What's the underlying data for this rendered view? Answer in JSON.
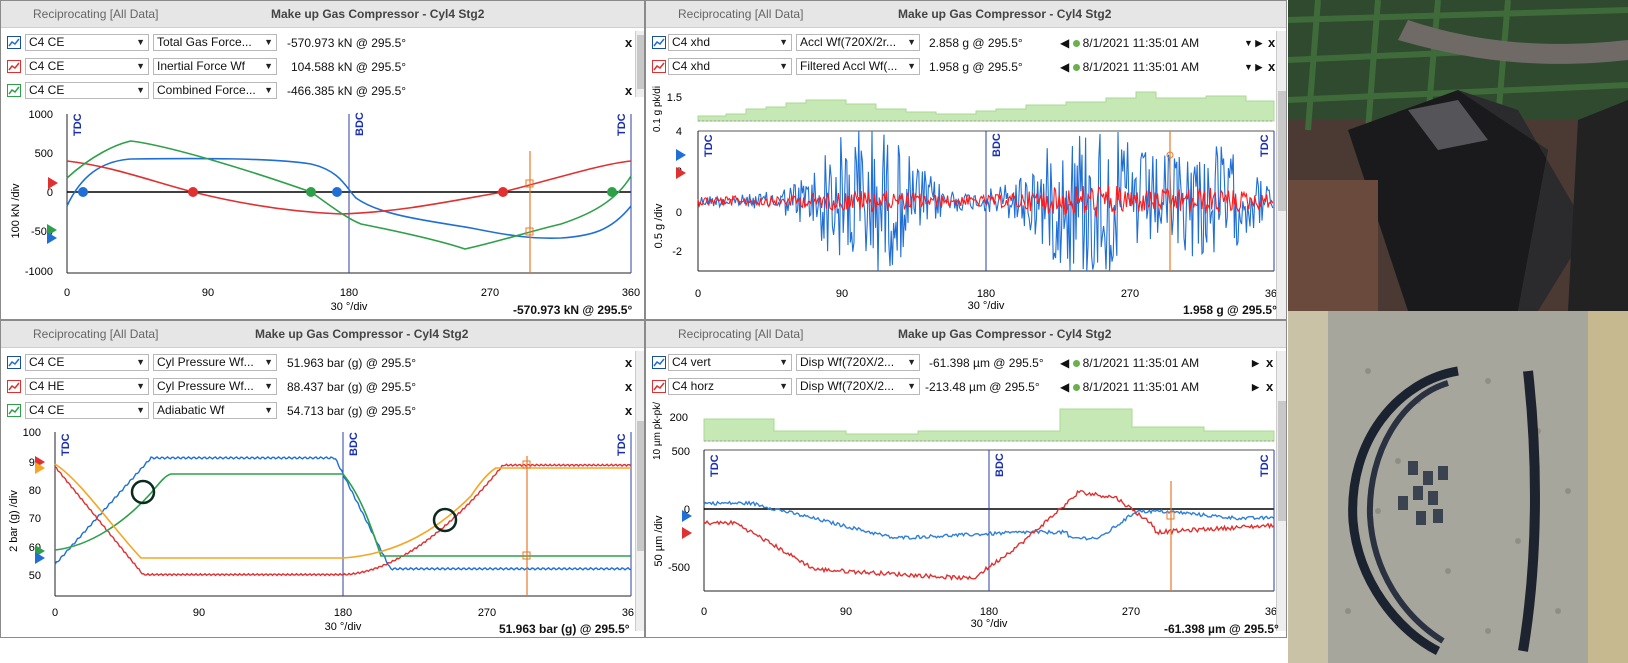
{
  "panels": [
    {
      "source": "Reciprocating",
      "scope": "[All Data]",
      "title": "Make up Gas Compressor - Cyl4 Stg2",
      "rows": [
        {
          "location": "C4 CE",
          "measurement": "Total Gas Force...",
          "value": "-570.973 kN @ 295.5°",
          "color": "#1f6fd6"
        },
        {
          "location": "C4 CE",
          "measurement": "Inertial Force Wf",
          "value": "104.588 kN @ 295.5°",
          "color": "#e03030"
        },
        {
          "location": "C4 CE",
          "measurement": "Combined Force...",
          "value": "-466.385 kN @ 295.5°",
          "color": "#2ea04a"
        }
      ],
      "ylabel": "100 kN /div",
      "yticks": [
        "1000",
        "500",
        "0",
        "-500",
        "-1000"
      ],
      "xticks": [
        "0",
        "90",
        "180",
        "270",
        "360"
      ],
      "xlabel": "30 °/div",
      "markers": [
        "TDC",
        "BDC",
        "TDC"
      ],
      "status": "-570.973 kN @ 295.5°"
    },
    {
      "source": "Reciprocating",
      "scope": "[All Data]",
      "title": "Make up Gas Compressor - Cyl4 Stg2",
      "rows": [
        {
          "location": "C4 xhd",
          "measurement": "Accl Wf(720X/2r...",
          "value": "2.858 g @ 295.5°",
          "timestamp": "8/1/2021 11:35:01 AM",
          "color": "#1f6fd6"
        },
        {
          "location": "C4 xhd",
          "measurement": "Filtered Accl Wf(...",
          "value": "1.958 g @ 295.5°",
          "timestamp": "8/1/2021 11:35:01 AM",
          "color": "#e03030"
        }
      ],
      "ylabel": "0.5 g /div",
      "yticks": [
        "4",
        "2",
        "0",
        "-2"
      ],
      "top_ylabel": "0.1 g pk/di",
      "top_ytick": "1.5",
      "xticks": [
        "0",
        "90",
        "180",
        "270",
        "360"
      ],
      "xlabel": "30 °/div",
      "markers": [
        "TDC",
        "BDC",
        "TDC"
      ],
      "status": "1.958 g @ 295.5°"
    },
    {
      "source": "Reciprocating",
      "scope": "[All Data]",
      "title": "Make up Gas Compressor - Cyl4 Stg2",
      "rows": [
        {
          "location": "C4 CE",
          "measurement": "Cyl Pressure Wf...",
          "value": "51.963 bar (g) @ 295.5°",
          "color": "#1f6fd6"
        },
        {
          "location": "C4 HE",
          "measurement": "Cyl Pressure Wf...",
          "value": "88.437 bar (g) @ 295.5°",
          "color": "#e03030"
        },
        {
          "location": "C4 CE",
          "measurement": "Adiabatic Wf",
          "value": "54.713 bar (g) @ 295.5°",
          "color": "#2ea04a"
        }
      ],
      "ylabel": "2 bar (g) /div",
      "yticks": [
        "100",
        "90",
        "80",
        "70",
        "60",
        "50"
      ],
      "xticks": [
        "0",
        "90",
        "180",
        "270",
        "360"
      ],
      "xlabel": "30 °/div",
      "markers": [
        "TDC",
        "BDC",
        "TDC"
      ],
      "status": "51.963 bar (g) @ 295.5°"
    },
    {
      "source": "Reciprocating",
      "scope": "[All Data]",
      "title": "Make up Gas Compressor - Cyl4 Stg2",
      "rows": [
        {
          "location": "C4 vert",
          "measurement": "Disp Wf(720X/2...",
          "value": "-61.398 µm @ 295.5°",
          "timestamp": "8/1/2021 11:35:01 AM",
          "color": "#1f6fd6"
        },
        {
          "location": "C4 horz",
          "measurement": "Disp Wf(720X/2...",
          "value": "-213.48 µm @ 295.5°",
          "timestamp": "8/1/2021 11:35:01 AM",
          "color": "#e03030"
        }
      ],
      "ylabel": "50 µm /div",
      "yticks": [
        "500",
        "0",
        "-500"
      ],
      "top_ylabel": "10 µm pk-pk/",
      "top_ytick": "200",
      "xticks": [
        "0",
        "90",
        "180",
        "270",
        "360"
      ],
      "xlabel": "30 °/div",
      "markers": [
        "TDC",
        "BDC",
        "TDC"
      ],
      "status": "-61.398 µm @ 295.5°"
    }
  ],
  "cursor_angle": 295.5,
  "photos": {
    "top": "crosshead-guide-photo",
    "bottom": "broken-piston-rings-photo"
  }
}
